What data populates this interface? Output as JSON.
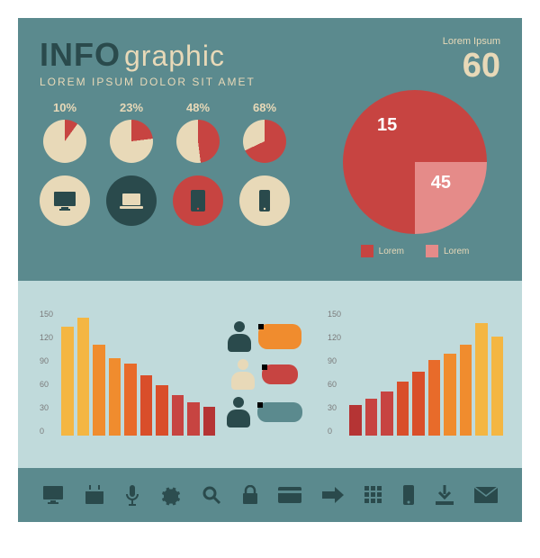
{
  "canvas": {
    "bg_top": "#5b8a8e",
    "bg_mid": "#c0dadb",
    "bg_bottom": "#5b8a8e"
  },
  "title": {
    "info_text": "INFO",
    "info_color": "#2a4a4c",
    "graphic_text": "graphic",
    "graphic_color": "#e8d9b8",
    "subtitle": "LOREM IPSUM DOLOR SIT AMET",
    "subtitle_color": "#e8d9b8"
  },
  "mini_pies": {
    "label_color": "#e8d9b8",
    "fill_color": "#c74441",
    "bg_color": "#e8d9b8",
    "items": [
      {
        "label": "10%",
        "pct": 10
      },
      {
        "label": "23%",
        "pct": 23
      },
      {
        "label": "48%",
        "pct": 48
      },
      {
        "label": "68%",
        "pct": 68
      }
    ]
  },
  "device_icons": [
    {
      "bg": "#e8d9b8",
      "fg": "#2a4a4c",
      "name": "monitor"
    },
    {
      "bg": "#2a4a4c",
      "fg": "#e8d9b8",
      "name": "laptop"
    },
    {
      "bg": "#c74441",
      "fg": "#2a4a4c",
      "name": "tablet"
    },
    {
      "bg": "#e8d9b8",
      "fg": "#2a4a4c",
      "name": "phone"
    }
  ],
  "big_pie": {
    "title": "Lorem Ipsum",
    "title_color": "#e8d9b8",
    "total": "60",
    "total_color": "#e8d9b8",
    "slices": [
      {
        "value": 45,
        "label": "45",
        "color": "#c74441"
      },
      {
        "value": 15,
        "label": "15",
        "color": "#e58b89"
      }
    ],
    "legend": [
      {
        "swatch": "#c74441",
        "label": "Lorem",
        "text_color": "#e8d9b8"
      },
      {
        "swatch": "#e58b89",
        "label": "Lorem",
        "text_color": "#e8d9b8"
      }
    ]
  },
  "bar_left": {
    "ylim": [
      0,
      150
    ],
    "yticks": [
      0,
      30,
      60,
      90,
      120,
      150
    ],
    "colors": [
      "#f4b642",
      "#f4b642",
      "#f08c2e",
      "#f08c2e",
      "#e86b2a",
      "#d94e2a",
      "#d94e2a",
      "#c74441",
      "#c74441",
      "#b53434"
    ],
    "values": [
      130,
      140,
      108,
      92,
      86,
      72,
      60,
      48,
      40,
      34
    ]
  },
  "bar_right": {
    "ylim": [
      0,
      150
    ],
    "yticks": [
      0,
      30,
      60,
      90,
      120,
      150
    ],
    "colors": [
      "#b53434",
      "#c74441",
      "#c74441",
      "#d94e2a",
      "#d94e2a",
      "#e86b2a",
      "#f08c2e",
      "#f08c2e",
      "#f4b642",
      "#f4b642"
    ],
    "values": [
      36,
      44,
      52,
      64,
      76,
      90,
      98,
      108,
      134,
      118
    ]
  },
  "people": [
    {
      "color": "#2a4a4c",
      "bubble_color": "#f08c2e",
      "bubble_w": 48,
      "bubble_h": 28,
      "tail": "left"
    },
    {
      "color": "#e8d9b8",
      "bubble_color": "#c74441",
      "bubble_w": 40,
      "bubble_h": 22,
      "tail": "left"
    },
    {
      "color": "#2a4a4c",
      "bubble_color": "#5b8a8e",
      "bubble_w": 50,
      "bubble_h": 22,
      "tail": "left"
    }
  ],
  "bottom_icons": [
    "monitor",
    "calendar",
    "mic",
    "gear",
    "search",
    "lock",
    "card",
    "arrow",
    "grid",
    "phone",
    "download",
    "mail"
  ]
}
